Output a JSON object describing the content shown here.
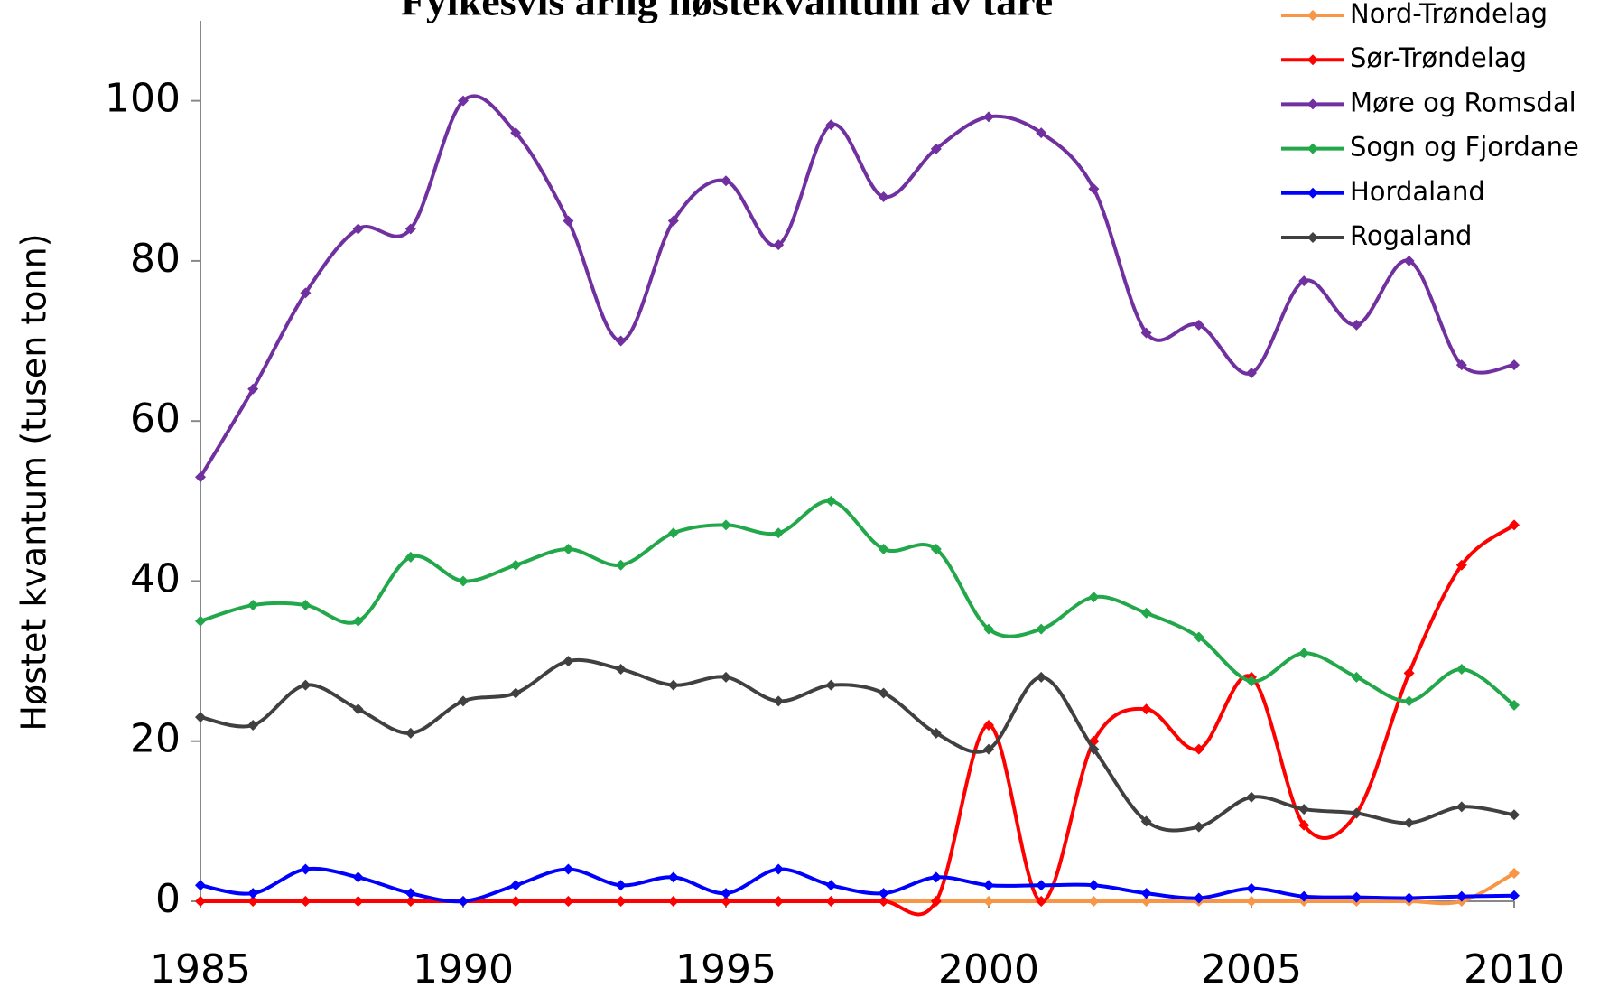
{
  "chart_data": {
    "type": "line",
    "title": "Fylkesvis årlig høstekvantum av tare",
    "y_label": "Høstet kvantum (tusen tonn)",
    "x": [
      1985,
      1986,
      1987,
      1988,
      1989,
      1990,
      1991,
      1992,
      1993,
      1994,
      1995,
      1996,
      1997,
      1998,
      1999,
      2000,
      2001,
      2002,
      2003,
      2004,
      2005,
      2006,
      2007,
      2008,
      2009,
      2010
    ],
    "xlim": [
      1985,
      2010
    ],
    "xticks": [
      1985,
      1990,
      1995,
      2000,
      2005,
      2010
    ],
    "ylim": [
      0,
      110
    ],
    "yticks": [
      0,
      20,
      40,
      60,
      80,
      100
    ],
    "grid": false,
    "legend": "top-right",
    "series": [
      {
        "name": "Nord-Trøndelag",
        "color": "#f79646",
        "values": [
          0,
          0,
          0,
          0,
          0,
          0,
          0,
          0,
          0,
          0,
          0,
          0,
          0,
          0,
          0,
          0,
          0,
          0,
          0,
          0,
          0,
          0,
          0,
          0,
          0,
          3.5
        ]
      },
      {
        "name": "Sør-Trøndelag",
        "color": "#ff0000",
        "values": [
          0,
          0,
          0,
          0,
          0,
          0,
          0,
          0,
          0,
          0,
          0,
          0,
          0,
          0,
          0,
          22,
          0,
          20,
          24,
          19,
          28,
          9.5,
          11,
          28.5,
          42,
          47
        ]
      },
      {
        "name": "Møre og Romsdal",
        "color": "#7030a0",
        "values": [
          53,
          64,
          76,
          84,
          84,
          100,
          96,
          85,
          70,
          85,
          90,
          82,
          97,
          88,
          94,
          98,
          96,
          89,
          71,
          72,
          66,
          77.5,
          72,
          80,
          67,
          67
        ]
      },
      {
        "name": "Sogn og Fjordane",
        "color": "#22a84a",
        "values": [
          35,
          37,
          37,
          35,
          43,
          40,
          42,
          44,
          42,
          46,
          47,
          46,
          50,
          44,
          44,
          34,
          34,
          38,
          36,
          33,
          27.5,
          31,
          28,
          25,
          29,
          24.5
        ]
      },
      {
        "name": "Hordaland",
        "color": "#0000ff",
        "values": [
          2,
          1,
          4,
          3,
          1,
          0,
          2,
          4,
          2,
          3,
          1,
          4,
          2,
          1,
          3,
          2,
          2,
          2,
          1,
          0.4,
          1.6,
          0.6,
          0.5,
          0.4,
          0.6,
          0.7
        ]
      },
      {
        "name": "Rogaland",
        "color": "#404040",
        "values": [
          23,
          22,
          27,
          24,
          21,
          25,
          26,
          30,
          29,
          27,
          28,
          25,
          27,
          26,
          21,
          19,
          28,
          19,
          10,
          9.3,
          13,
          11.5,
          11,
          9.8,
          11.8,
          10.8
        ]
      }
    ]
  }
}
